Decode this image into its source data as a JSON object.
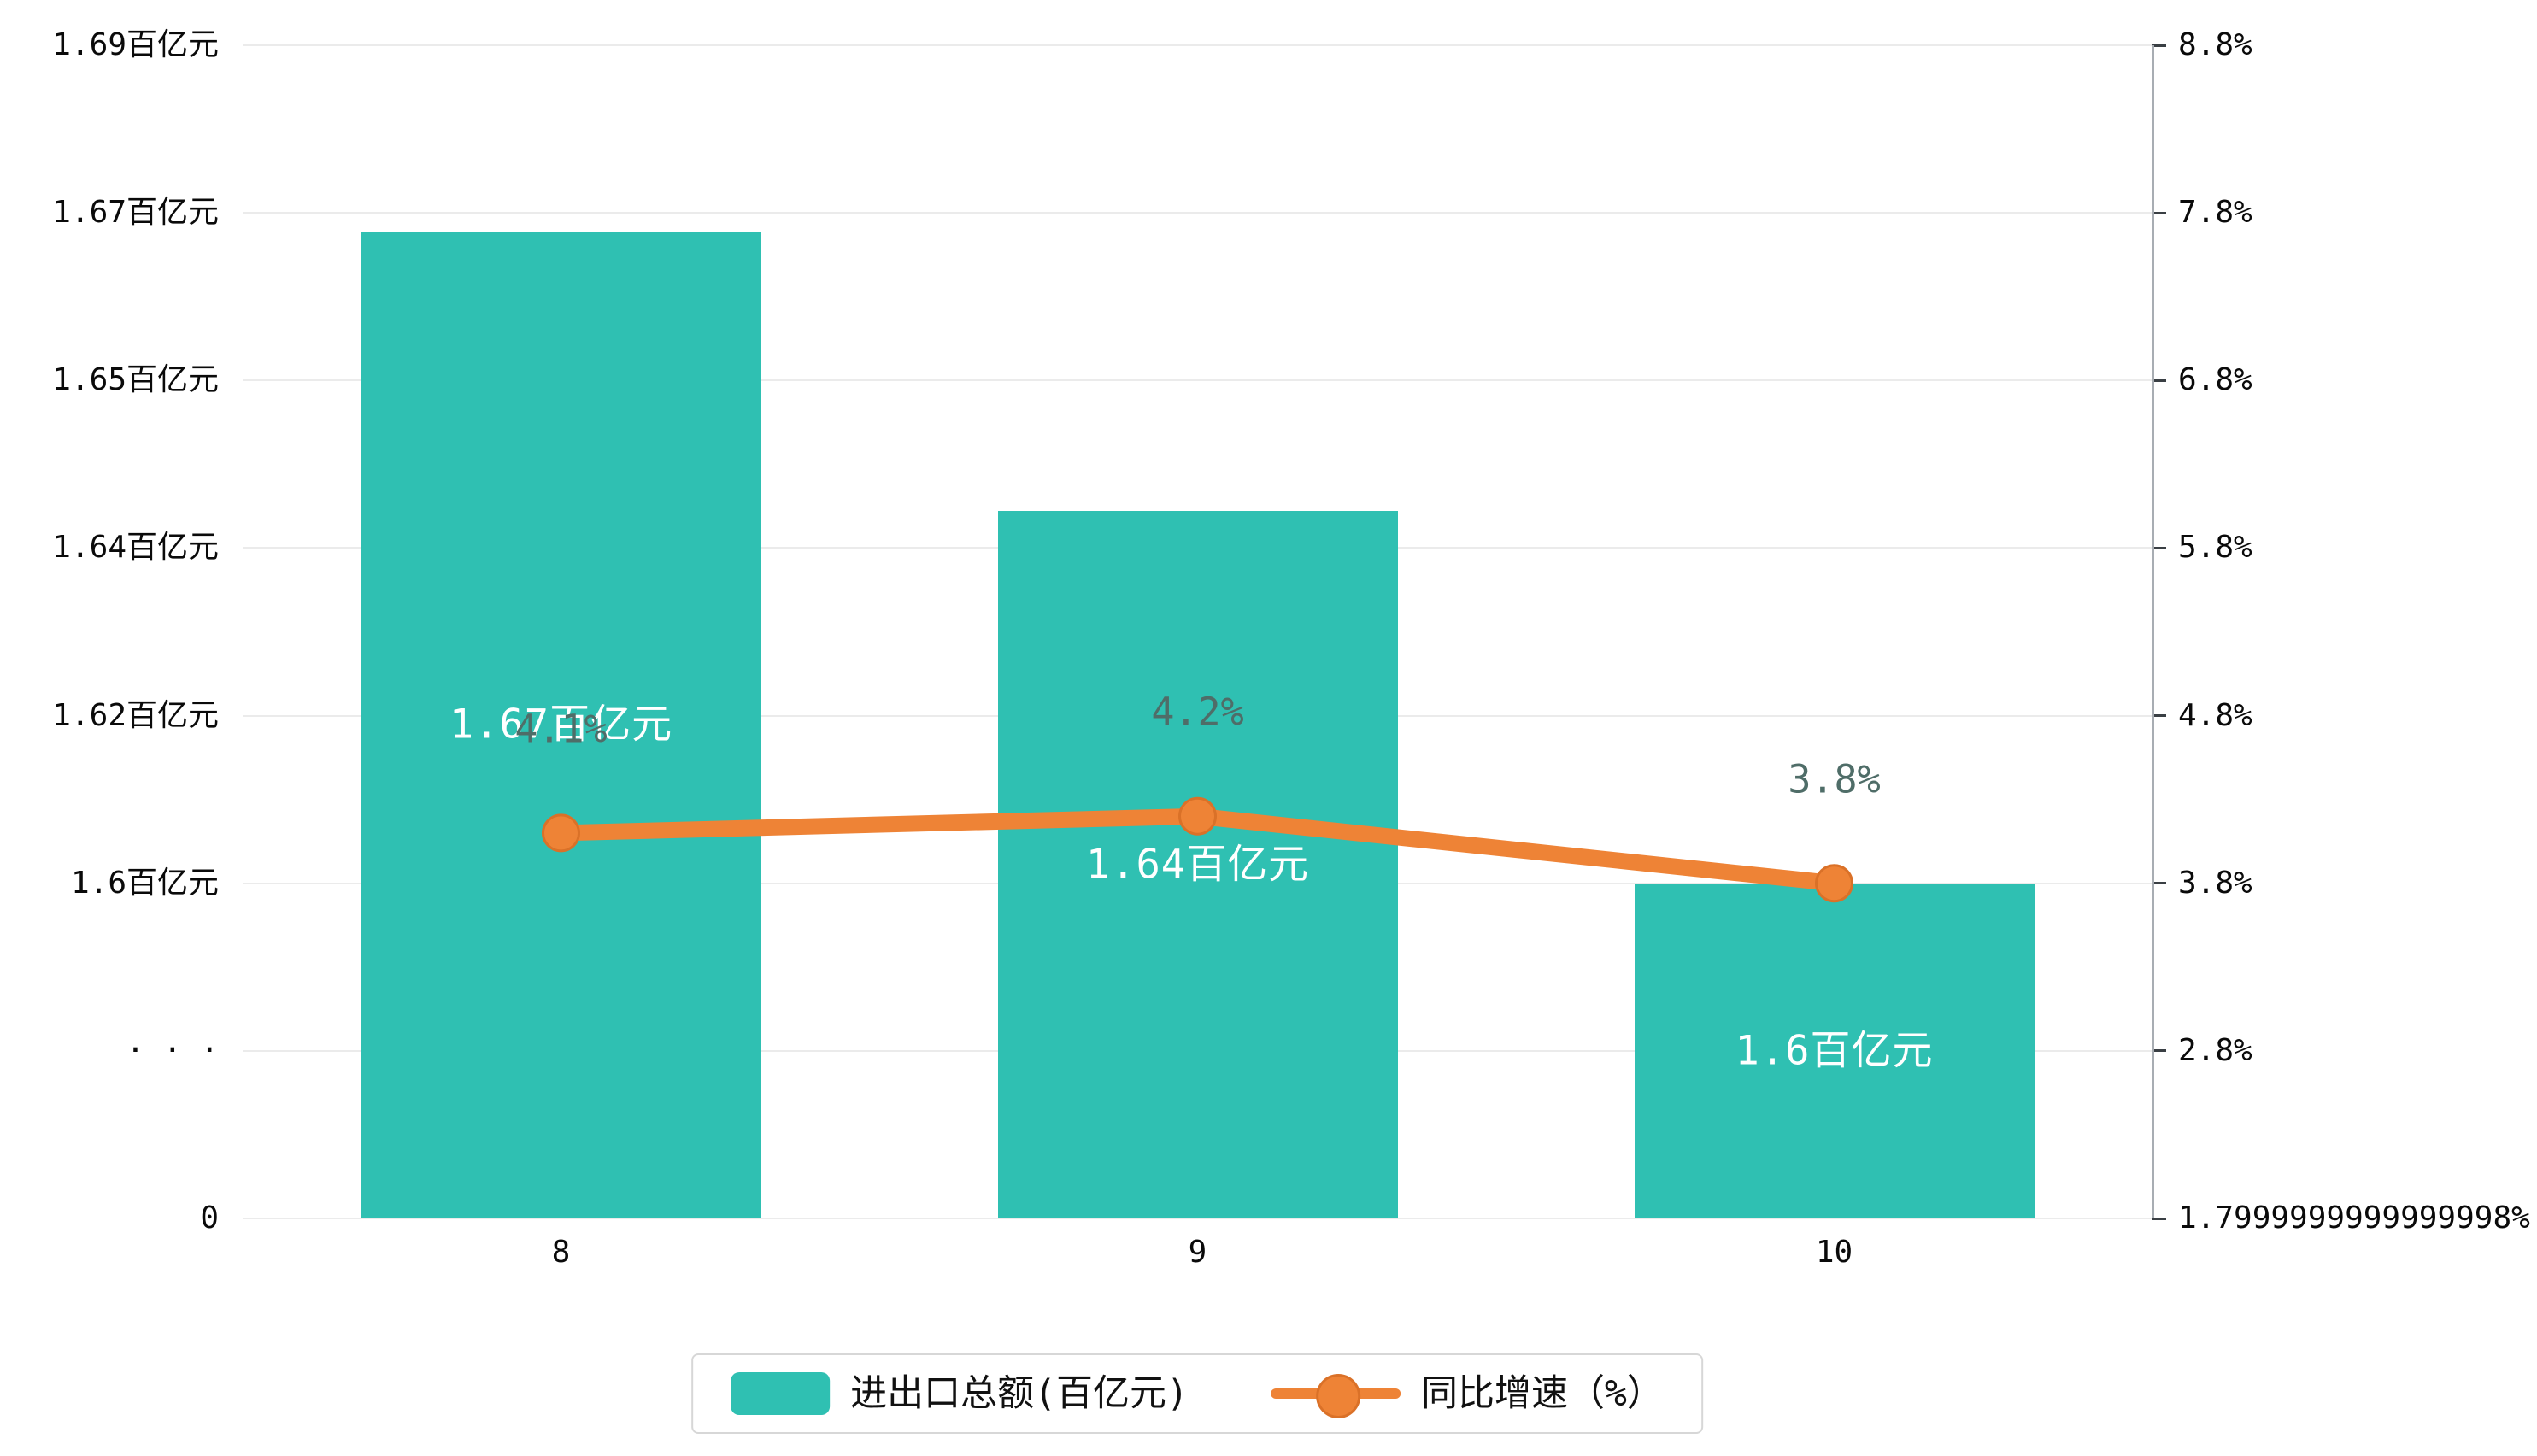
{
  "chart_data": {
    "type": "bar+line",
    "categories": [
      "8",
      "9",
      "10"
    ],
    "series": [
      {
        "name": "进出口总额(百亿元)",
        "type": "bar",
        "values": [
          1.67,
          1.64,
          1.6
        ],
        "data_labels": [
          "1.67百亿元",
          "1.64百亿元",
          "1.6百亿元"
        ],
        "color": "#2fc0b2"
      },
      {
        "name": "同比增速（%）",
        "type": "line",
        "values": [
          4.1,
          4.2,
          3.8
        ],
        "data_labels": [
          "4.1%",
          "4.2%",
          "3.8%"
        ],
        "color": "#ee8336",
        "marker_stroke": "#da7128",
        "label_color": "#4f6d68"
      }
    ],
    "left_axis": {
      "tick_labels": [
        "1.69百亿元",
        "1.67百亿元",
        "1.65百亿元",
        "1.64百亿元",
        "1.62百亿元",
        "1.6百亿元",
        "· · ·",
        "0"
      ],
      "unit": "百亿元",
      "axis_min_label": "0",
      "break_marker": "· · ·",
      "value_min": 1.6,
      "value_max": 1.69
    },
    "right_axis": {
      "tick_labels": [
        "8.8%",
        "7.8%",
        "6.8%",
        "5.8%",
        "4.8%",
        "3.8%",
        "2.8%",
        "1.7999999999999998%"
      ],
      "value_min": 1.8,
      "value_max": 8.8
    },
    "grid": true,
    "legend_position": "bottom",
    "title": ""
  },
  "colors": {
    "background": "#ffffff",
    "grid": "#ebebeb",
    "right_axis_line": "#a8adb3",
    "tick": "#3a3f44",
    "axis_text": "#0a0a0a",
    "bar_label_text": "#ffffff"
  }
}
